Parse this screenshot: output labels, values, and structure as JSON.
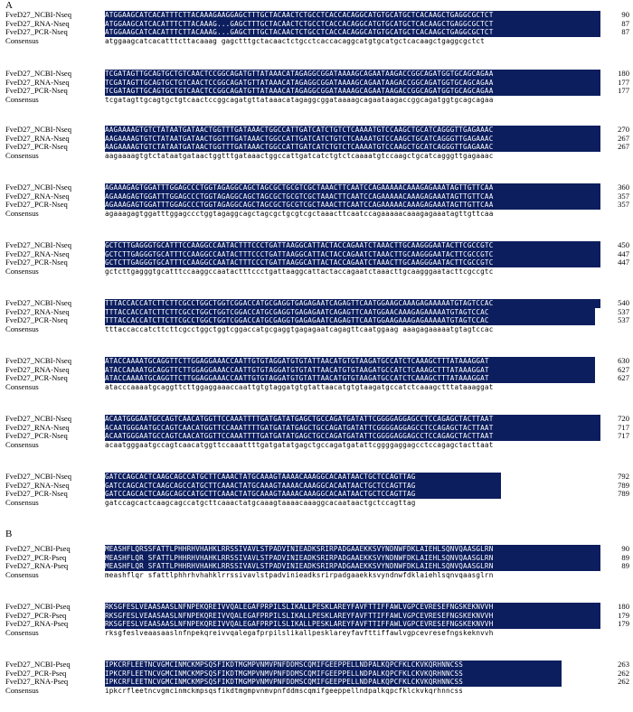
{
  "panels": [
    {
      "label": "A",
      "blocks": [
        {
          "rows": [
            {
              "name": "FveD27_NCBI-Nseq",
              "seq": "ATGGAAGCATCACATTTCTTACAAAGAAGGAGCTTTGCTACAACTCTGCCTCACCACAGGCATGTGCATGCTCACAAGCTGAGGCGCTCT",
              "num": "90"
            },
            {
              "name": "FveD27_RNA-Nseq",
              "seq": "ATGGAAGCATCACATTTCTTACAAAG...GAGCTTTGCTACAACTCTGCCTCACCACAGGCATGTGCATGCTCACAAGCTGAGGCGCTCT",
              "num": "87"
            },
            {
              "name": "FveD27_PCR-Nseq",
              "seq": "ATGGAAGCATCACATTTCTTACAAAG...GAGCTTTGCTACAACTCTGCCTCACCACAGGCATGTGCATGCTCACAAGCTGAGGCGCTCT",
              "num": "87"
            },
            {
              "name": "Consensus",
              "seq": "atggaagcatcacatttcttacaaag   gagctttgctacaactctgcctcaccacaggcatgtgcatgctcacaagctgaggcgctct",
              "num": "",
              "consensus": true
            }
          ]
        },
        {
          "rows": [
            {
              "name": "FveD27_NCBI-Nseq",
              "seq": "TCGATAGTTGCAGTGCTGTCAACTCCGGCAGATGTTATAAACATAGAGGCGGATAAAAGCAGAATAAGACCGGCAGATGGTGCAGCAGAA",
              "num": "180"
            },
            {
              "name": "FveD27_RNA-Nseq",
              "seq": "TCGATAGTTGCAGTGCTGTCAACTCCGGCAGATGTTATAAACATAGAGGCGGATAAAAGCAGAATAAGACCGGCAGATGGTGCAGCAGAA",
              "num": "177"
            },
            {
              "name": "FveD27_PCR-Nseq",
              "seq": "TCGATAGTTGCAGTGCTGTCAACTCCGGCAGATGTTATAAACATAGAGGCGGATAAAAGCAGAATAAGACCGGCAGATGGTGCAGCAGAA",
              "num": "177"
            },
            {
              "name": "Consensus",
              "seq": "tcgatagttgcagtgctgtcaactccggcagatgttataaacatagaggcggataaaagcagaataagaccggcagatggtgcagcagaa",
              "num": "",
              "consensus": true
            }
          ]
        },
        {
          "rows": [
            {
              "name": "FveD27_NCBI-Nseq",
              "seq": "AAGAAAAGTGTCTATAATGATAACTGGTTTGATAAACTGGCCATTGATCATCTGTCTCAAAATGTCCAAGCTGCATCAGGGTTGAGAAAC",
              "num": "270"
            },
            {
              "name": "FveD27_RNA-Nseq",
              "seq": "AAGAAAAGTGTCTATAATGATAACTGGTTTGATAAACTGGCCATTGATCATCTGTCTCAAAATGTCCAAGCTGCATCAGGGTTGAGAAAC",
              "num": "267"
            },
            {
              "name": "FveD27_PCR-Nseq",
              "seq": "AAGAAAAGTGTCTATAATGATAACTGGTTTGATAAACTGGCCATTGATCATCTGTCTCAAAATGTCCAAGCTGCATCAGGGTTGAGAAAC",
              "num": "267"
            },
            {
              "name": "Consensus",
              "seq": "aagaaaagtgtctataatgataactggtttgataaactggccattgatcatctgtctcaaaatgtccaagctgcatcagggttgagaaac",
              "num": "",
              "consensus": true
            }
          ]
        },
        {
          "rows": [
            {
              "name": "FveD27_NCBI-Nseq",
              "seq": "AGAAAGAGTGGATTTGGAGCCCTGGTAGAGGCAGCTAGCGCTGCGTCGCTAAACTTCAATCCAGAAAAACAAAGAGAAATAGTTGTTCAA",
              "num": "360"
            },
            {
              "name": "FveD27_RNA-Nseq",
              "seq": "AGAAAGAGTGGATTTGGAGCCCTGGTAGAGGCAGCTAGCGCTGCGTCGCTAAACTTCAATCCAGAAAAACAAAGAGAAATAGTTGTTCAA",
              "num": "357"
            },
            {
              "name": "FveD27_PCR-Nseq",
              "seq": "AGAAAGAGTGGATTTGGAGCCCTGGTAGAGGCAGCTAGCGCTGCGTCGCTAAACTTCAATCCAGAAAAACAAAGAGAAATAGTTGTTCAA",
              "num": "357"
            },
            {
              "name": "Consensus",
              "seq": "agaaagagtggatttggagccctggtagaggcagctagcgctgcgtcgctaaacttcaatccagaaaaacaaagagaaatagttgttcaa",
              "num": "",
              "consensus": true
            }
          ]
        },
        {
          "rows": [
            {
              "name": "FveD27_NCBI-Nseq",
              "seq": "GCTCTTGAGGGTGCATTTCCAAGGCCAATACTTTCCCTGATTAAGGCATTACTACCAGAATCTAAACTTGCAAGGGAATACTTCGCCGTC",
              "num": "450"
            },
            {
              "name": "FveD27_RNA-Nseq",
              "seq": "GCTCTTGAGGGTGCATTTCCAAGGCCAATACTTTCCCTGATTAAGGCATTACTACCAGAATCTAAACTTGCAAGGGAATACTTCGCCGTC",
              "num": "447"
            },
            {
              "name": "FveD27_PCR-Nseq",
              "seq": "GCTCTTGAGGGTGCATTTCCAAGGCCAATACTTTCCCTGATTAAGGCATTACTACCAGAATCTAAACTTGCAAGGGAATACTTCGCCGTC",
              "num": "447"
            },
            {
              "name": "Consensus",
              "seq": "gctcttgagggtgcatttccaaggccaatactttccctgattaaggcattactaccagaatctaaacttgcaagggaatacttcgccgtc",
              "num": "",
              "consensus": true
            }
          ]
        },
        {
          "rows": [
            {
              "name": "FveD27_NCBI-Nseq",
              "seq": "TTTACCACCATCTTCTTCGCCTGGCTGGTCGGACCATGCGAGGTGAGAGAATCAGAGTTCAATGGAAGCAAAGAGAAAAATGTAGTCCAC",
              "num": "540"
            },
            {
              "name": "FveD27_RNA-Nseq",
              "seq": "TTTACCACCATCTTCTTCGCCTGGCTGGTCGGACCATGCGAGGTGAGAGAATCAGAGTTCAATGGAACAAAGAGAAAAATGTAGTCCAC",
              "num": "537"
            },
            {
              "name": "FveD27_PCR-Nseq",
              "seq": "TTTACCACCATCTTCTTCGCCTGGCTGGTCGGACCATGCGAGGTGAGAGAATCAGAGTTCAATGGAAGAAAGAGAAAAATGTAGTCCAC",
              "num": "537"
            },
            {
              "name": "Consensus",
              "seq": "tttaccaccatcttcttcgcctggctggtcggaccatgcgaggtgagagaatcagagttcaatggaag aaagagaaaaatgtagtccac",
              "num": "",
              "consensus": true
            }
          ]
        },
        {
          "rows": [
            {
              "name": "FveD27_NCBI-Nseq",
              "seq": "ATACCAAAATGCAGGTTCTTGGAGGAAACCAATTGTGTAGGATGTGTATTAACATGTGTAAGATGCCATCTCAAAGCTTTATAAAGGAT",
              "num": "630"
            },
            {
              "name": "FveD27_RNA-Nseq",
              "seq": "ATACCAAAATGCAGGTTCTTGGAGGAAACCAATTGTGTAGGATGTGTATTAACATGTGTAAGATGCCATCTCAAAGCTTTATAAAGGAT",
              "num": "627"
            },
            {
              "name": "FveD27_PCR-Nseq",
              "seq": "ATACCAAAATGCAGGTTCTTGGAGGAAACCAATTGTGTAGGATGTGTATTAACATGTGTAAGATGCCATCTCAAAGCTTTATAAAGGAT",
              "num": "627"
            },
            {
              "name": "Consensus",
              "seq": "atacccaaaatgcaggttcttggaggaaaccaattgtgtaggatgtgtattaacatgtgtaagatgccatctcaaagctttataaaggat",
              "num": "",
              "consensus": true
            }
          ]
        },
        {
          "rows": [
            {
              "name": "FveD27_NCBI-Nseq",
              "seq": "ACAATGGGAATGCCAGTCAACATGGTTCCAAATTTTGATGATATGAGCTGCCAGATGATATTCGGGGAGGAGCCTCCAGAGCTACTTAAT",
              "num": "720"
            },
            {
              "name": "FveD27_RNA-Nseq",
              "seq": "ACAATGGGAATGCCAGTCAACATGGTTCCAAATTTTGATGATATGAGCTGCCAGATGATATTCGGGGAGGAGCCTCCAGAGCTACTTAAT",
              "num": "717"
            },
            {
              "name": "FveD27_PCR-Nseq",
              "seq": "ACAATGGGAATGCCAGTCAACATGGTTCCAAATTTTGATGATATGAGCTGCCAGATGATATTCGGGGAGGAGCCTCCAGAGCTACTTAAT",
              "num": "717"
            },
            {
              "name": "Consensus",
              "seq": "acaatgggaatgccagtcaacatggttccaaattttgatgatatgagctgccagatgatattcggggaggagcctccagagctacttaat",
              "num": "",
              "consensus": true
            }
          ]
        },
        {
          "rows": [
            {
              "name": "FveD27_NCBI-Nseq",
              "seq": "GATCCAGCACTCAAGCAGCCATGCTTCAAACTATGCAAAGTAAAACAAAGGCACAATAACTGCTCCAGTTAG",
              "num": "792"
            },
            {
              "name": "FveD27_RNA-Nseq",
              "seq": "GATCCAGCACTCAAGCAGCCATGCTTCAAACTATGCAAAGTAAAACAAAGGCACAATAACTGCTCCAGTTAG",
              "num": "789"
            },
            {
              "name": "FveD27_PCR-Nseq",
              "seq": "GATCCAGCACTCAAGCAGCCATGCTTCAAACTATGCAAAGTAAAACAAAGGCACAATAACTGCTCCAGTTAG",
              "num": "789"
            },
            {
              "name": "Consensus",
              "seq": "gatccagcactcaagcagccatgcttcaaactatgcaaagtaaaacaaaggcacaataactgctccagttag",
              "num": "",
              "consensus": true
            }
          ]
        }
      ]
    },
    {
      "label": "B",
      "blocks": [
        {
          "rows": [
            {
              "name": "FveD27_NCBI-Pseq",
              "seq": "MEASHFLQRSSFATTLPHHRHVHAHKLRRSSIVAVLSTPADVINIEADKSRIRPADGAAEKKSVYNDNWFDKLAIEHLSQNVQAASGLRN",
              "num": "90"
            },
            {
              "name": "FveD27_PCR-Pseq",
              "seq": "MEASHFLQR SFATTLPHHRHVHAHKLRRSSIVAVLSTPADVINIEADKSRIRPADGAAEKKSVYNDNWFDKLAIEHLSQNVQAASGLRN",
              "num": "89"
            },
            {
              "name": "FveD27_RNA-Pseq",
              "seq": "MEASHFLQR SFATTLPHHRHVHAHKLRRSSIVAVLSTPADVINIEADKSRIRPADGAAEKKSVYNDNWFDKLAIEHLSQNVQAASGLRN",
              "num": "89"
            },
            {
              "name": "Consensus",
              "seq": "meashflqr sfattlphhrhvhahklrrssivavlstpadvinieadksrirpadgaaekksvyndnwfdklaiehlsqnvqaasglrn",
              "num": "",
              "consensus": true
            }
          ]
        },
        {
          "rows": [
            {
              "name": "FveD27_NCBI-Pseq",
              "seq": "RKSGFESLVEAASAASLNFNPEKQREIVVQALEGAFPRPILSLIKALLPESKLAREYFAVFTTIFFAWLVGPCEVRESEFNGSKEKNVVH",
              "num": "180"
            },
            {
              "name": "FveD27_PCR-Pseq",
              "seq": "RKSGFESLVEAASAASLNFNPEKQREIVVQALEGAFPRPILSLIKALLPESKLAREYFAVFTTIFFAWLVGPCEVRESEFNGSKEKNVVH",
              "num": "179"
            },
            {
              "name": "FveD27_RNA-Pseq",
              "seq": "RKSGFESLVEAASAASLNFNPEKQREIVVQALEGAFPRPILSLIKALLPESKLAREYFAVFTTIFFAWLVGPCEVRESEFNGSKEKNVVH",
              "num": "179"
            },
            {
              "name": "Consensus",
              "seq": "rksgfeslveaasaaslnfnpekqreivvqalegafprpilslikallpesklareyfavfttiffawlvgpcevresefngskeknvvh",
              "num": "",
              "consensus": true
            }
          ]
        },
        {
          "rows": [
            {
              "name": "FveD27_NCBI-Pseq",
              "seq": "IPKCRFLEETNCVGMCINMCKMPSQSFIKDTMGMPVNMVPNFDDMSCQMIFGEEPPELLNDPALKQPCFKLCKVKQRHNNCSS",
              "num": "263"
            },
            {
              "name": "FveD27_PCR-Pseq",
              "seq": "IPKCRFLEETNCVGMCINMCKMPSQSFIKDTMGMPVNMVPNFDDMSCQMIFGEEPPELLNDPALKQPCFKLCKVKQRHNNCSS",
              "num": "262"
            },
            {
              "name": "FveD27_RNA-Pseq",
              "seq": "IPKCRFLEETNCVGMCINMCKMPSQSFIKDTMGMPVNMVPNFDDMSCQMIFGEEPPELLNDPALKQPCFKLCKVKQRHNNCSS",
              "num": "262"
            },
            {
              "name": "Consensus",
              "seq": "ipkcrfleetncvgmcinmckmpsqsfikdtmgmpvnmvpnfddmscqmifgeeppellndpalkqpcfklckvkqrhnncss",
              "num": "",
              "consensus": true
            }
          ]
        }
      ]
    }
  ]
}
